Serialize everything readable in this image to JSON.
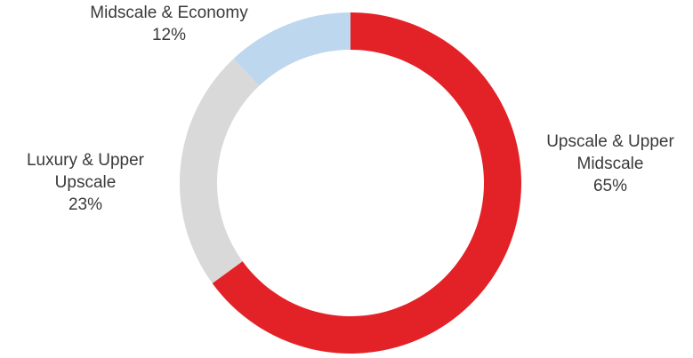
{
  "chart_data": {
    "type": "pie",
    "variant": "donut",
    "title": "",
    "legend": "none",
    "slices": [
      {
        "label_lines": [
          "Upscale & Upper",
          "Midscale"
        ],
        "value": 65,
        "value_label": "65%",
        "color": "#e32227"
      },
      {
        "label_lines": [
          "Luxury & Upper",
          "Upscale"
        ],
        "value": 23,
        "value_label": "23%",
        "color": "#d9d9d9"
      },
      {
        "label_lines": [
          "Midscale & Economy"
        ],
        "value": 12,
        "value_label": "12%",
        "color": "#bdd7ee"
      }
    ]
  }
}
